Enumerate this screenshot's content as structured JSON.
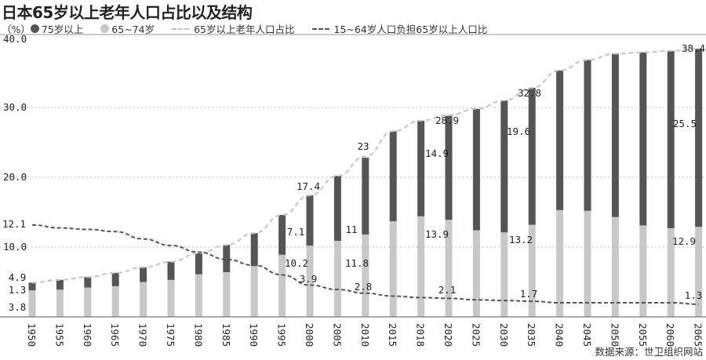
{
  "title": "日本65岁以上老年人口占比以及结构",
  "source": "数据来源：世卫组织网站",
  "colors": {
    "age75plus": "#555555",
    "age65_74": "#c8c8c8",
    "share_line": "#c4c4c4",
    "dependency_line": "#555555"
  },
  "chart_data": {
    "type": "bar",
    "unit_label": "（%）",
    "legend": [
      "75岁以上",
      "65~74岁",
      "65岁以上老年人口占比",
      "15~64岁人口负担65岁以上人口比"
    ],
    "legend_placement": "top",
    "yticks": [
      "10.0",
      "20.0",
      "30.0",
      "40.0"
    ],
    "ylim": [
      0,
      40
    ],
    "grid": true,
    "categories": [
      "1950",
      "1955",
      "1960",
      "1965",
      "1970",
      "1975",
      "1980",
      "1985",
      "1990",
      "1995",
      "2000",
      "2005",
      "2010",
      "2015",
      "2018",
      "2020",
      "2025",
      "2030",
      "2035",
      "2040",
      "2045",
      "2050",
      "2055",
      "2060",
      "2065"
    ],
    "series": [
      {
        "name": "65~74岁",
        "type": "stacked-bar",
        "values": [
          3.8,
          3.9,
          4.2,
          4.4,
          5.0,
          5.3,
          6.1,
          6.4,
          7.3,
          8.9,
          10.2,
          10.9,
          11.8,
          13.7,
          14.4,
          13.9,
          12.4,
          12.1,
          13.2,
          15.3,
          15.2,
          14.3,
          13.1,
          12.7,
          12.9
        ]
      },
      {
        "name": "75岁以上",
        "type": "stacked-bar",
        "values": [
          1.1,
          1.4,
          1.5,
          1.9,
          2.1,
          2.6,
          3.0,
          3.9,
          4.7,
          5.7,
          7.2,
          9.3,
          11.0,
          12.9,
          13.7,
          14.9,
          17.4,
          18.9,
          19.6,
          20.0,
          21.6,
          23.4,
          24.8,
          25.4,
          25.5
        ]
      },
      {
        "name": "65岁以上老年人口占比",
        "type": "line",
        "values": [
          4.9,
          5.3,
          5.7,
          6.3,
          7.1,
          7.9,
          9.1,
          10.3,
          12.0,
          14.6,
          17.4,
          20.2,
          23.0,
          26.6,
          28.1,
          28.9,
          29.8,
          31.0,
          32.8,
          35.3,
          36.8,
          37.7,
          37.9,
          38.1,
          38.4
        ]
      },
      {
        "name": "15~64岁人口负担65岁以上人口比",
        "type": "line",
        "values": [
          12.1,
          11.7,
          11.5,
          11.2,
          10.2,
          9.3,
          8.4,
          7.4,
          6.6,
          5.3,
          3.9,
          3.3,
          2.8,
          2.4,
          2.2,
          2.1,
          1.9,
          1.8,
          1.7,
          1.5,
          1.5,
          1.5,
          1.5,
          1.5,
          1.3
        ]
      }
    ],
    "data_labels": [
      "4.9",
      "1.3",
      "3.8",
      "12.1",
      "7.1",
      "10.2",
      "3.9",
      "17.4",
      "11",
      "11.8",
      "2.8",
      "23",
      "14.9",
      "13.9",
      "28.9",
      "2.1",
      "19.6",
      "13.2",
      "32.8",
      "1.7",
      "25.5",
      "12.9",
      "38.4",
      "1.3"
    ]
  }
}
